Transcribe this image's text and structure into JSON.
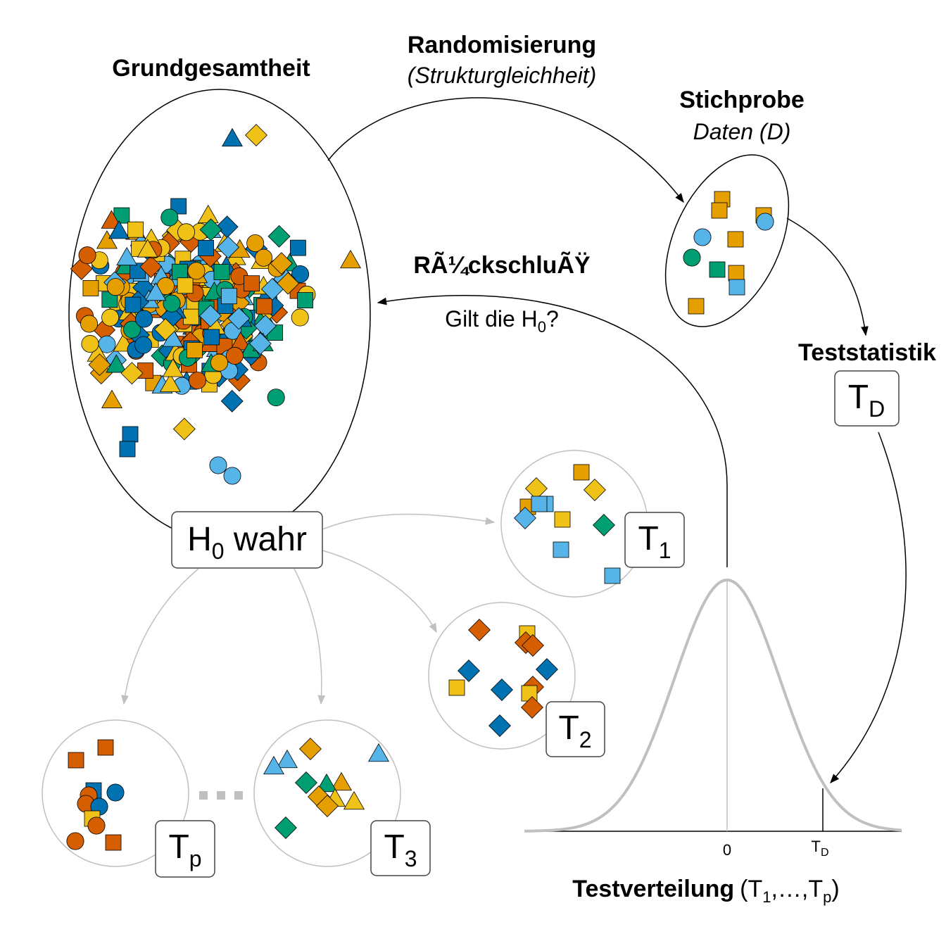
{
  "labels": {
    "population": "Grundgesamtheit",
    "randomization": "Randomisierung",
    "randomization_note": "(Strukturgleichheit)",
    "sample": "Stichprobe",
    "sample_note": "Daten (D)",
    "inference": "RÃ¼ckschluÃŸ",
    "question": "Gilt die H",
    "question_sub": "0",
    "question_end": "?",
    "test_statistic": "Teststatistik",
    "h0_true": "H",
    "h0_sub": "0",
    "h0_rest": " wahr",
    "test_distribution": "Testverteilung",
    "test_distribution_range": "(T",
    "test_distribution_range_sub1": "1",
    "test_distribution_range_mid": ",…,T",
    "test_distribution_range_subp": "p",
    "test_distribution_range_end": ")",
    "axis_zero": "0",
    "axis_td": "T",
    "axis_td_sub": "D"
  },
  "statistic_boxes": [
    {
      "main": "T",
      "sub": "D"
    },
    {
      "main": "T",
      "sub": "1"
    },
    {
      "main": "T",
      "sub": "2"
    },
    {
      "main": "T",
      "sub": "3"
    },
    {
      "main": "T",
      "sub": "p"
    }
  ],
  "colors": {
    "orange": "#E69F00",
    "skyblue": "#56B4E9",
    "green": "#009E73",
    "yellow": "#F0C218",
    "blue": "#0072B2",
    "vermillion": "#D55E00",
    "gray_line": "#c0c0c0"
  }
}
